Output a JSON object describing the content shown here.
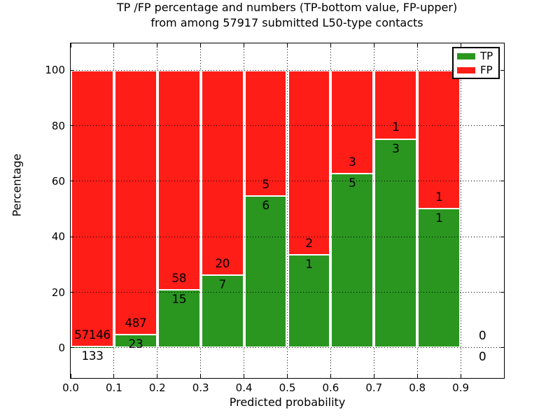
{
  "title": {
    "line1": "TP /FP percentage and numbers (TP-bottom value, FP-upper)",
    "line2": "from among 57917 submitted L50-type contacts"
  },
  "y_axis": {
    "label": "Percentage",
    "tick_labels": [
      "0",
      "20",
      "40",
      "60",
      "80",
      "100"
    ],
    "tick_values": [
      0,
      20,
      40,
      60,
      80,
      100
    ]
  },
  "x_axis": {
    "label": "Predicted probability",
    "tick_labels": [
      "0.0",
      "0.1",
      "0.2",
      "0.3",
      "0.4",
      "0.5",
      "0.6",
      "0.7",
      "0.8",
      "0.9"
    ],
    "tick_values": [
      0.0,
      0.1,
      0.2,
      0.3,
      0.4,
      0.5,
      0.6,
      0.7,
      0.8,
      0.9
    ]
  },
  "legend": {
    "items": [
      {
        "label": "TP",
        "color": "#2a9620"
      },
      {
        "label": "FP",
        "color": "#ff1d17"
      }
    ]
  },
  "colors": {
    "tp": "#2a9620",
    "fp": "#ff1d17",
    "bar_edge": "#ffffff",
    "grid": "#000000",
    "frame": "#000000",
    "background": "#ffffff"
  },
  "chart_data": {
    "type": "bar",
    "stacked": true,
    "title": "TP /FP percentage and numbers (TP-bottom value, FP-upper) from among 57917 submitted L50-type contacts",
    "xlabel": "Predicted probability",
    "ylabel": "Percentage",
    "total_submitted": 57917,
    "bin_width": 0.1,
    "bin_starts": [
      0.0,
      0.1,
      0.2,
      0.3,
      0.4,
      0.5,
      0.6,
      0.7,
      0.8,
      0.9
    ],
    "series": [
      {
        "name": "TP",
        "counts": [
          133,
          23,
          15,
          7,
          6,
          1,
          5,
          3,
          1,
          0
        ]
      },
      {
        "name": "FP",
        "counts": [
          57146,
          487,
          58,
          20,
          5,
          2,
          3,
          1,
          1,
          0
        ]
      }
    ],
    "tp_percent": [
      0.23,
      4.51,
      20.55,
      25.93,
      54.55,
      33.33,
      62.5,
      75.0,
      50.0,
      null
    ],
    "ylim": [
      -10.9,
      109.7
    ],
    "xlim": [
      0.0,
      1.0
    ],
    "grid": "dotted",
    "legend_position": "upper right",
    "bar_label_note": "TP count below segment boundary, FP count above"
  }
}
